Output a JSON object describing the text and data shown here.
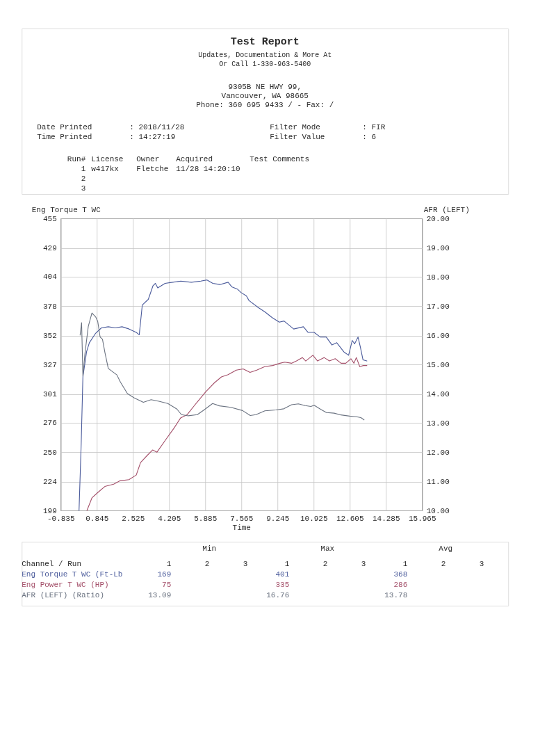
{
  "chart_data": {
    "type": "line",
    "title": "Test Report",
    "subtitle": "Updates, Documentation & More At\nOr Call 1-330-963-5400",
    "xlabel": "Time",
    "ylabel": "Eng Torque T WC",
    "y2label": "AFR (LEFT)",
    "xlim": [
      -0.835,
      15.965
    ],
    "xticks": [
      -0.835,
      0.845,
      2.525,
      4.205,
      5.885,
      7.565,
      9.245,
      10.925,
      12.605,
      14.285,
      15.965
    ],
    "ylim": [
      199,
      455
    ],
    "yticks": [
      199,
      224,
      250,
      276,
      301,
      327,
      352,
      378,
      404,
      429,
      455
    ],
    "y2lim": [
      10,
      20
    ],
    "y2ticks": [
      {
        "value": 10,
        "label": "10.00"
      },
      {
        "value": 11,
        "label": "11.00"
      },
      {
        "value": 12,
        "label": "12.00"
      },
      {
        "value": 13,
        "label": "13.00"
      },
      {
        "value": 14,
        "label": "14.00"
      },
      {
        "value": 15,
        "label": "15.00"
      },
      {
        "value": 16,
        "label": "16.00"
      },
      {
        "value": 17,
        "label": "17.00"
      },
      {
        "value": 18,
        "label": "18.00"
      },
      {
        "value": 19,
        "label": "19.00"
      },
      {
        "value": 20,
        "label": "20.00"
      }
    ],
    "grid": true,
    "series": [
      {
        "name": "Eng Torque T WC (Ft-Lb",
        "color": "#4b5b9b",
        "x": [
          0.02,
          0.12,
          0.2,
          0.37,
          0.5,
          0.78,
          1.06,
          1.38,
          1.7,
          2.02,
          2.35,
          2.68,
          2.82,
          2.96,
          3.24,
          3.46,
          3.57,
          3.68,
          4.02,
          4.37,
          4.75,
          5.24,
          5.68,
          5.96,
          6.24,
          6.57,
          6.95,
          7.12,
          7.38,
          7.55,
          7.8,
          7.92,
          8.34,
          8.66,
          9.0,
          9.33,
          9.55,
          10.0,
          10.45,
          10.67,
          10.95,
          11.23,
          11.51,
          11.78,
          12.0,
          12.33,
          12.55,
          12.72,
          12.83,
          12.99,
          13.1,
          13.22,
          13.4
        ],
        "values": [
          199,
          257,
          316,
          338,
          346,
          354,
          359,
          360,
          359,
          360,
          358,
          355,
          353,
          379,
          384,
          396,
          398,
          394,
          398,
          399,
          400,
          399,
          400,
          401,
          398,
          397,
          399,
          395,
          393,
          390,
          387,
          383,
          377,
          373,
          368,
          364,
          365,
          358,
          360,
          355,
          355,
          351,
          351,
          344,
          346,
          338,
          335,
          348,
          345,
          351,
          342,
          331,
          330
        ]
      },
      {
        "name": "Eng Power T WC (HP)",
        "color": "#a4506a",
        "x": [
          0.39,
          0.62,
          0.91,
          1.22,
          1.63,
          1.93,
          2.34,
          2.68,
          2.88,
          3.18,
          3.44,
          3.64,
          4.05,
          4.43,
          4.74,
          5.05,
          5.47,
          5.91,
          6.32,
          6.64,
          6.95,
          7.33,
          7.65,
          7.97,
          8.28,
          8.65,
          9.02,
          9.36,
          9.58,
          9.91,
          10.13,
          10.4,
          10.56,
          10.89,
          11.11,
          11.41,
          11.66,
          11.93,
          12.2,
          12.42,
          12.66,
          12.8,
          12.91,
          13.07,
          13.24,
          13.4
        ],
        "values": [
          199,
          210,
          215,
          220,
          222,
          225,
          226,
          230,
          241,
          247,
          252,
          250,
          261,
          271,
          280,
          283,
          293,
          303,
          311,
          316,
          318,
          322,
          323,
          320,
          322,
          325,
          326,
          328,
          329,
          328,
          330,
          333,
          330,
          335,
          330,
          333,
          330,
          332,
          328,
          328,
          332,
          328,
          333,
          325,
          326,
          326
        ]
      },
      {
        "name": "AFR (LEFT) (Ratio)",
        "color": "#6a7280",
        "axis": "y2",
        "x": [
          0.07,
          0.14,
          0.2,
          0.3,
          0.45,
          0.62,
          0.79,
          0.89,
          1.0,
          1.11,
          1.22,
          1.38,
          1.78,
          1.94,
          2.27,
          2.59,
          3.01,
          3.37,
          3.73,
          4.15,
          4.57,
          4.78,
          5.1,
          5.52,
          5.83,
          6.23,
          6.55,
          7.08,
          7.62,
          7.98,
          8.25,
          8.66,
          9.17,
          9.54,
          9.9,
          10.22,
          10.53,
          10.8,
          10.95,
          11.26,
          11.52,
          11.88,
          12.19,
          12.6,
          12.91,
          13.12,
          13.27
        ],
        "values": [
          16.0,
          16.43,
          14.6,
          15.4,
          16.3,
          16.76,
          16.63,
          16.47,
          15.94,
          15.86,
          15.42,
          14.86,
          14.64,
          14.4,
          14.0,
          13.85,
          13.7,
          13.79,
          13.74,
          13.66,
          13.47,
          13.28,
          13.24,
          13.28,
          13.44,
          13.66,
          13.58,
          13.53,
          13.42,
          13.25,
          13.28,
          13.41,
          13.44,
          13.48,
          13.62,
          13.65,
          13.59,
          13.56,
          13.6,
          13.46,
          13.35,
          13.33,
          13.27,
          13.23,
          13.21,
          13.18,
          13.1
        ]
      }
    ],
    "annotations": [
      "9305B NE HWY 99,",
      "Vancouver, WA 98665",
      "Phone: 360 695 9433 / - Fax: /",
      "Date Printed",
      ": 2018/11/28",
      "Time Printed",
      ": 14:27:19",
      "Filter Mode",
      ": FIR",
      "Filter Value",
      ": 6",
      "Run#",
      "License",
      "Owner",
      "Acquired",
      "Test Comments",
      "1",
      "w417kx",
      "Fletche",
      "11/28 14:20:10",
      "2",
      "3",
      "Min",
      "Max",
      "Avg",
      "Channel / Run",
      "1",
      "2",
      "3",
      "1",
      "2",
      "3",
      "1",
      "2",
      "3",
      "169",
      "401",
      "368",
      "75",
      "335",
      "286",
      "13.09",
      "16.76",
      "13.78"
    ]
  }
}
